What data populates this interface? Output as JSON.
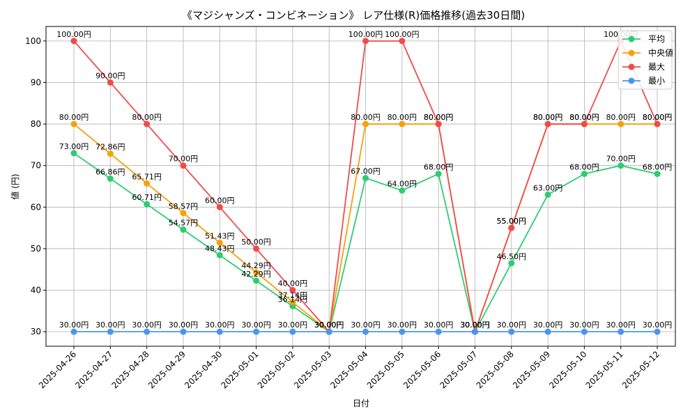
{
  "chart_data": {
    "type": "line",
    "title": "《マジシャンズ・コンビネーション》 レア仕様(R)価格推移(過去30日間)",
    "xlabel": "日付",
    "ylabel": "値 (円)",
    "ylim": [
      26.5,
      103.5
    ],
    "yticks": [
      30,
      40,
      50,
      60,
      70,
      80,
      90,
      100
    ],
    "grid": true,
    "legend_position": "top-right",
    "value_suffix": "円",
    "categories": [
      "2025-04-26",
      "2025-04-27",
      "2025-04-28",
      "2025-04-29",
      "2025-04-30",
      "2025-05-01",
      "2025-05-02",
      "2025-05-03",
      "2025-05-04",
      "2025-05-05",
      "2025-05-06",
      "2025-05-07",
      "2025-05-08",
      "2025-05-09",
      "2025-05-10",
      "2025-05-11",
      "2025-05-12"
    ],
    "series": [
      {
        "name": "平均",
        "color": "#2ecc71",
        "values": [
          73.0,
          66.86,
          60.71,
          54.57,
          48.43,
          42.29,
          36.14,
          30.0,
          67.0,
          64.0,
          68.0,
          30.0,
          46.5,
          63.0,
          68.0,
          70.0,
          68.0
        ]
      },
      {
        "name": "中央値",
        "color": "#f5a10a",
        "values": [
          80.0,
          72.86,
          65.71,
          58.57,
          51.43,
          44.29,
          37.14,
          30.0,
          80.0,
          80.0,
          80.0,
          30.0,
          55.0,
          80.0,
          80.0,
          80.0,
          80.0
        ]
      },
      {
        "name": "最大",
        "color": "#ef4b4b",
        "values": [
          100.0,
          90.0,
          80.0,
          70.0,
          60.0,
          50.0,
          40.0,
          30.0,
          100.0,
          100.0,
          80.0,
          30.0,
          55.0,
          80.0,
          80.0,
          100.0,
          80.0
        ]
      },
      {
        "name": "最小",
        "color": "#4a95f0",
        "values": [
          30.0,
          30.0,
          30.0,
          30.0,
          30.0,
          30.0,
          30.0,
          30.0,
          30.0,
          30.0,
          30.0,
          30.0,
          30.0,
          30.0,
          30.0,
          30.0,
          30.0
        ]
      }
    ]
  }
}
